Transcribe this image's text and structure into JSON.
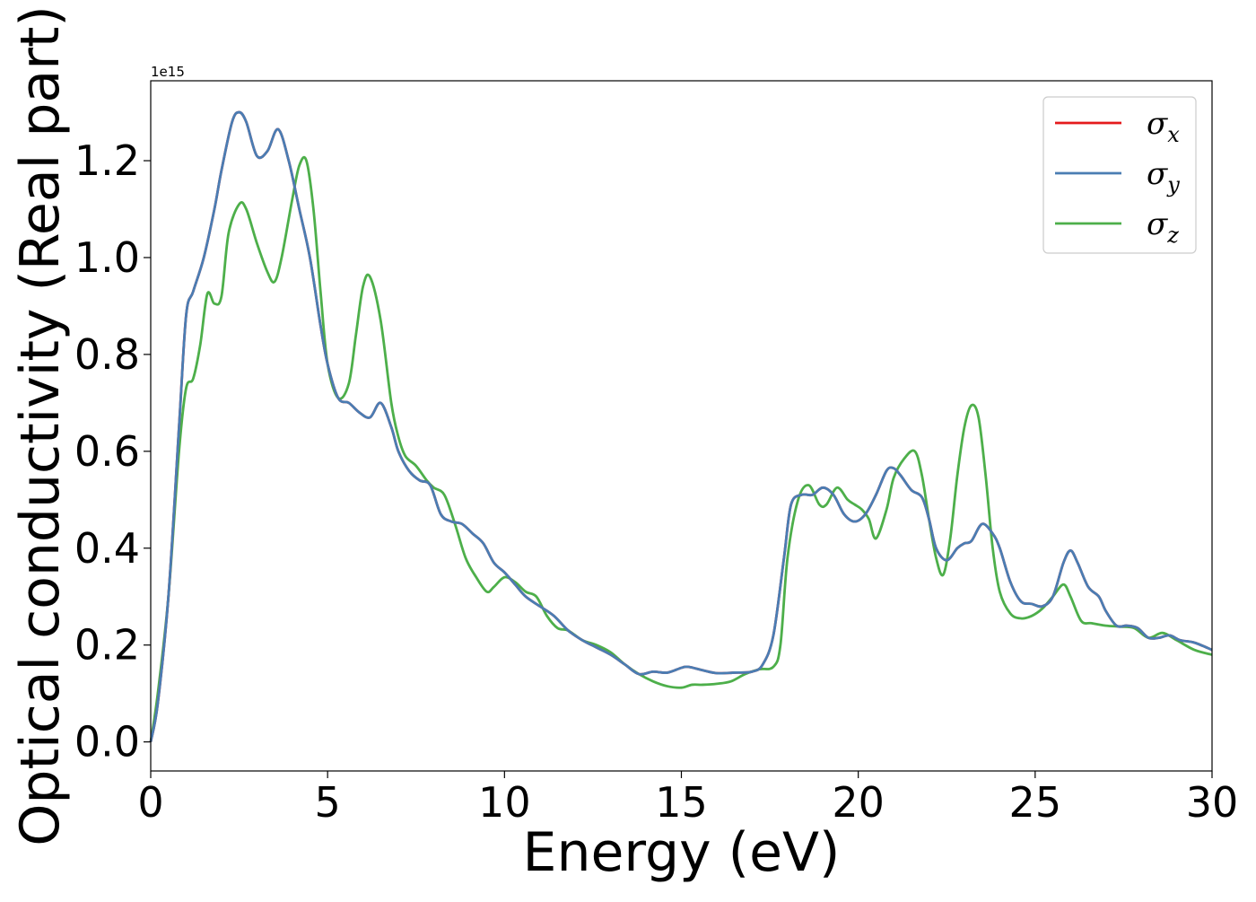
{
  "chart_data": {
    "type": "line",
    "xlabel": "Energy (eV)",
    "ylabel": "Optical conductivity (Real part)",
    "y_offset_label": "1e15",
    "xlim": [
      0,
      30
    ],
    "ylim": [
      -0.06,
      1.365
    ],
    "x_ticks": [
      0,
      5,
      10,
      15,
      20,
      25,
      30
    ],
    "x_tick_labels": [
      "0",
      "5",
      "10",
      "15",
      "20",
      "25",
      "30"
    ],
    "y_ticks": [
      0.0,
      0.2,
      0.4,
      0.6,
      0.8,
      1.0,
      1.2
    ],
    "y_tick_labels": [
      "0.0",
      "0.2",
      "0.4",
      "0.6",
      "0.8",
      "1.0",
      "1.2"
    ],
    "grid": false,
    "legend_position": "top-right",
    "series": [
      {
        "name": "σx",
        "legend_base": "σ",
        "legend_sub": "x",
        "color": "#e41a1c",
        "x": [
          0,
          0.2,
          0.5,
          0.8,
          1.0,
          1.2,
          1.5,
          1.8,
          2.0,
          2.3,
          2.5,
          2.7,
          3.0,
          3.3,
          3.6,
          3.9,
          4.2,
          4.5,
          4.8,
          5.0,
          5.3,
          5.6,
          5.9,
          6.2,
          6.5,
          6.8,
          7.0,
          7.3,
          7.6,
          7.9,
          8.2,
          8.5,
          8.8,
          9.1,
          9.4,
          9.7,
          10.0,
          10.3,
          10.6,
          11.0,
          11.4,
          11.8,
          12.2,
          12.6,
          13.0,
          13.4,
          13.8,
          14.2,
          14.6,
          15.0,
          15.2,
          15.6,
          16.0,
          16.5,
          17.0,
          17.3,
          17.6,
          17.9,
          18.1,
          18.4,
          18.7,
          19.0,
          19.3,
          19.6,
          19.9,
          20.2,
          20.5,
          20.8,
          21.0,
          21.2,
          21.5,
          21.8,
          22.0,
          22.2,
          22.5,
          22.8,
          23.0,
          23.2,
          23.5,
          23.8,
          24.0,
          24.3,
          24.6,
          24.9,
          25.2,
          25.5,
          25.8,
          26.0,
          26.2,
          26.5,
          26.8,
          27.0,
          27.3,
          27.6,
          27.9,
          28.2,
          28.5,
          28.8,
          29.1,
          29.5,
          30.0
        ],
        "values": [
          0.0,
          0.08,
          0.3,
          0.65,
          0.88,
          0.93,
          1.0,
          1.1,
          1.18,
          1.28,
          1.3,
          1.28,
          1.21,
          1.22,
          1.265,
          1.2,
          1.1,
          1.0,
          0.86,
          0.78,
          0.71,
          0.7,
          0.68,
          0.67,
          0.7,
          0.65,
          0.6,
          0.56,
          0.54,
          0.53,
          0.47,
          0.455,
          0.45,
          0.43,
          0.41,
          0.37,
          0.35,
          0.325,
          0.3,
          0.28,
          0.26,
          0.23,
          0.21,
          0.195,
          0.18,
          0.16,
          0.14,
          0.145,
          0.143,
          0.153,
          0.155,
          0.148,
          0.142,
          0.143,
          0.145,
          0.16,
          0.22,
          0.38,
          0.49,
          0.51,
          0.51,
          0.525,
          0.51,
          0.47,
          0.455,
          0.47,
          0.51,
          0.56,
          0.565,
          0.55,
          0.52,
          0.505,
          0.46,
          0.4,
          0.375,
          0.4,
          0.41,
          0.415,
          0.45,
          0.43,
          0.4,
          0.33,
          0.29,
          0.285,
          0.28,
          0.3,
          0.37,
          0.395,
          0.37,
          0.32,
          0.3,
          0.27,
          0.24,
          0.24,
          0.235,
          0.215,
          0.215,
          0.22,
          0.21,
          0.205,
          0.19
        ]
      },
      {
        "name": "σy",
        "legend_base": "σ",
        "legend_sub": "y",
        "color": "#4a7db3",
        "x": [
          0,
          0.2,
          0.5,
          0.8,
          1.0,
          1.2,
          1.5,
          1.8,
          2.0,
          2.3,
          2.5,
          2.7,
          3.0,
          3.3,
          3.6,
          3.9,
          4.2,
          4.5,
          4.8,
          5.0,
          5.3,
          5.6,
          5.9,
          6.2,
          6.5,
          6.8,
          7.0,
          7.3,
          7.6,
          7.9,
          8.2,
          8.5,
          8.8,
          9.1,
          9.4,
          9.7,
          10.0,
          10.3,
          10.6,
          11.0,
          11.4,
          11.8,
          12.2,
          12.6,
          13.0,
          13.4,
          13.8,
          14.2,
          14.6,
          15.0,
          15.2,
          15.6,
          16.0,
          16.5,
          17.0,
          17.3,
          17.6,
          17.9,
          18.1,
          18.4,
          18.7,
          19.0,
          19.3,
          19.6,
          19.9,
          20.2,
          20.5,
          20.8,
          21.0,
          21.2,
          21.5,
          21.8,
          22.0,
          22.2,
          22.5,
          22.8,
          23.0,
          23.2,
          23.5,
          23.8,
          24.0,
          24.3,
          24.6,
          24.9,
          25.2,
          25.5,
          25.8,
          26.0,
          26.2,
          26.5,
          26.8,
          27.0,
          27.3,
          27.6,
          27.9,
          28.2,
          28.5,
          28.8,
          29.1,
          29.5,
          30.0
        ],
        "values": [
          0.0,
          0.08,
          0.3,
          0.65,
          0.88,
          0.93,
          1.0,
          1.1,
          1.18,
          1.28,
          1.3,
          1.28,
          1.21,
          1.22,
          1.265,
          1.2,
          1.1,
          1.0,
          0.86,
          0.78,
          0.71,
          0.7,
          0.68,
          0.67,
          0.7,
          0.65,
          0.6,
          0.56,
          0.54,
          0.53,
          0.47,
          0.455,
          0.45,
          0.43,
          0.41,
          0.37,
          0.35,
          0.325,
          0.3,
          0.28,
          0.26,
          0.23,
          0.21,
          0.195,
          0.18,
          0.16,
          0.14,
          0.145,
          0.143,
          0.153,
          0.155,
          0.148,
          0.142,
          0.143,
          0.145,
          0.16,
          0.22,
          0.38,
          0.49,
          0.51,
          0.51,
          0.525,
          0.51,
          0.47,
          0.455,
          0.47,
          0.51,
          0.56,
          0.565,
          0.55,
          0.52,
          0.505,
          0.46,
          0.4,
          0.375,
          0.4,
          0.41,
          0.415,
          0.45,
          0.43,
          0.4,
          0.33,
          0.29,
          0.285,
          0.28,
          0.3,
          0.37,
          0.395,
          0.37,
          0.32,
          0.3,
          0.27,
          0.24,
          0.24,
          0.235,
          0.215,
          0.215,
          0.22,
          0.21,
          0.205,
          0.19
        ]
      },
      {
        "name": "σz",
        "legend_base": "σ",
        "legend_sub": "z",
        "color": "#4daf4a",
        "x": [
          0,
          0.2,
          0.5,
          0.8,
          1.0,
          1.2,
          1.4,
          1.6,
          1.8,
          2.0,
          2.2,
          2.5,
          2.7,
          3.0,
          3.3,
          3.5,
          3.7,
          4.0,
          4.2,
          4.4,
          4.6,
          4.8,
          5.0,
          5.3,
          5.6,
          5.8,
          6.0,
          6.2,
          6.5,
          6.8,
          7.0,
          7.2,
          7.5,
          7.8,
          8.0,
          8.3,
          8.6,
          8.9,
          9.2,
          9.5,
          9.7,
          10.0,
          10.3,
          10.6,
          10.9,
          11.2,
          11.5,
          11.8,
          12.2,
          12.6,
          13.0,
          13.4,
          13.8,
          14.2,
          14.6,
          15.0,
          15.3,
          15.6,
          16.0,
          16.4,
          16.8,
          17.2,
          17.6,
          17.8,
          18.0,
          18.3,
          18.6,
          18.9,
          19.1,
          19.4,
          19.7,
          19.9,
          20.1,
          20.3,
          20.5,
          20.8,
          21.0,
          21.3,
          21.6,
          21.8,
          22.0,
          22.2,
          22.4,
          22.6,
          22.8,
          23.0,
          23.2,
          23.4,
          23.6,
          23.8,
          24.0,
          24.3,
          24.6,
          24.9,
          25.2,
          25.5,
          25.8,
          26.0,
          26.3,
          26.6,
          27.0,
          27.4,
          27.8,
          28.2,
          28.6,
          29.0,
          29.5,
          30.0
        ],
        "values": [
          0.0,
          0.1,
          0.3,
          0.6,
          0.73,
          0.75,
          0.82,
          0.925,
          0.905,
          0.92,
          1.05,
          1.11,
          1.1,
          1.03,
          0.97,
          0.95,
          1.0,
          1.12,
          1.19,
          1.2,
          1.1,
          0.93,
          0.78,
          0.71,
          0.74,
          0.84,
          0.94,
          0.96,
          0.87,
          0.7,
          0.63,
          0.59,
          0.57,
          0.54,
          0.525,
          0.51,
          0.45,
          0.38,
          0.34,
          0.31,
          0.32,
          0.34,
          0.33,
          0.31,
          0.3,
          0.26,
          0.235,
          0.23,
          0.21,
          0.2,
          0.185,
          0.16,
          0.14,
          0.125,
          0.115,
          0.112,
          0.118,
          0.118,
          0.12,
          0.125,
          0.14,
          0.15,
          0.155,
          0.2,
          0.38,
          0.5,
          0.53,
          0.49,
          0.49,
          0.525,
          0.5,
          0.49,
          0.48,
          0.46,
          0.42,
          0.48,
          0.545,
          0.585,
          0.6,
          0.55,
          0.46,
          0.38,
          0.345,
          0.42,
          0.55,
          0.65,
          0.695,
          0.67,
          0.55,
          0.4,
          0.31,
          0.265,
          0.255,
          0.26,
          0.275,
          0.3,
          0.325,
          0.3,
          0.25,
          0.245,
          0.24,
          0.238,
          0.235,
          0.215,
          0.225,
          0.21,
          0.19,
          0.18
        ]
      }
    ]
  }
}
